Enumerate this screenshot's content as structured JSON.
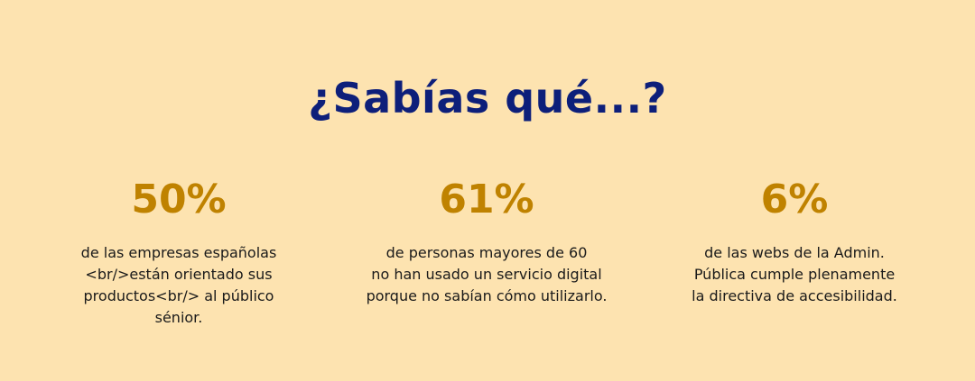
{
  "heading": "¿Sabías qué...?",
  "colors": {
    "background": "#fde3b0",
    "heading": "#0d1f7a",
    "accent": "#bf8200",
    "text": "#1a1a1a"
  },
  "stats": [
    {
      "value": "50%",
      "description": "de las empresas españolas\n<br/>están orientado sus\nproductos<br/> al público\nsénior."
    },
    {
      "value": "61%",
      "description": "de personas mayores de 60\nno han usado un servicio digital\nporque no sabían cómo utilizarlo."
    },
    {
      "value": "6%",
      "description": "de las webs de la Admin.\nPública cumple plenamente\nla directiva de accesibilidad."
    }
  ]
}
